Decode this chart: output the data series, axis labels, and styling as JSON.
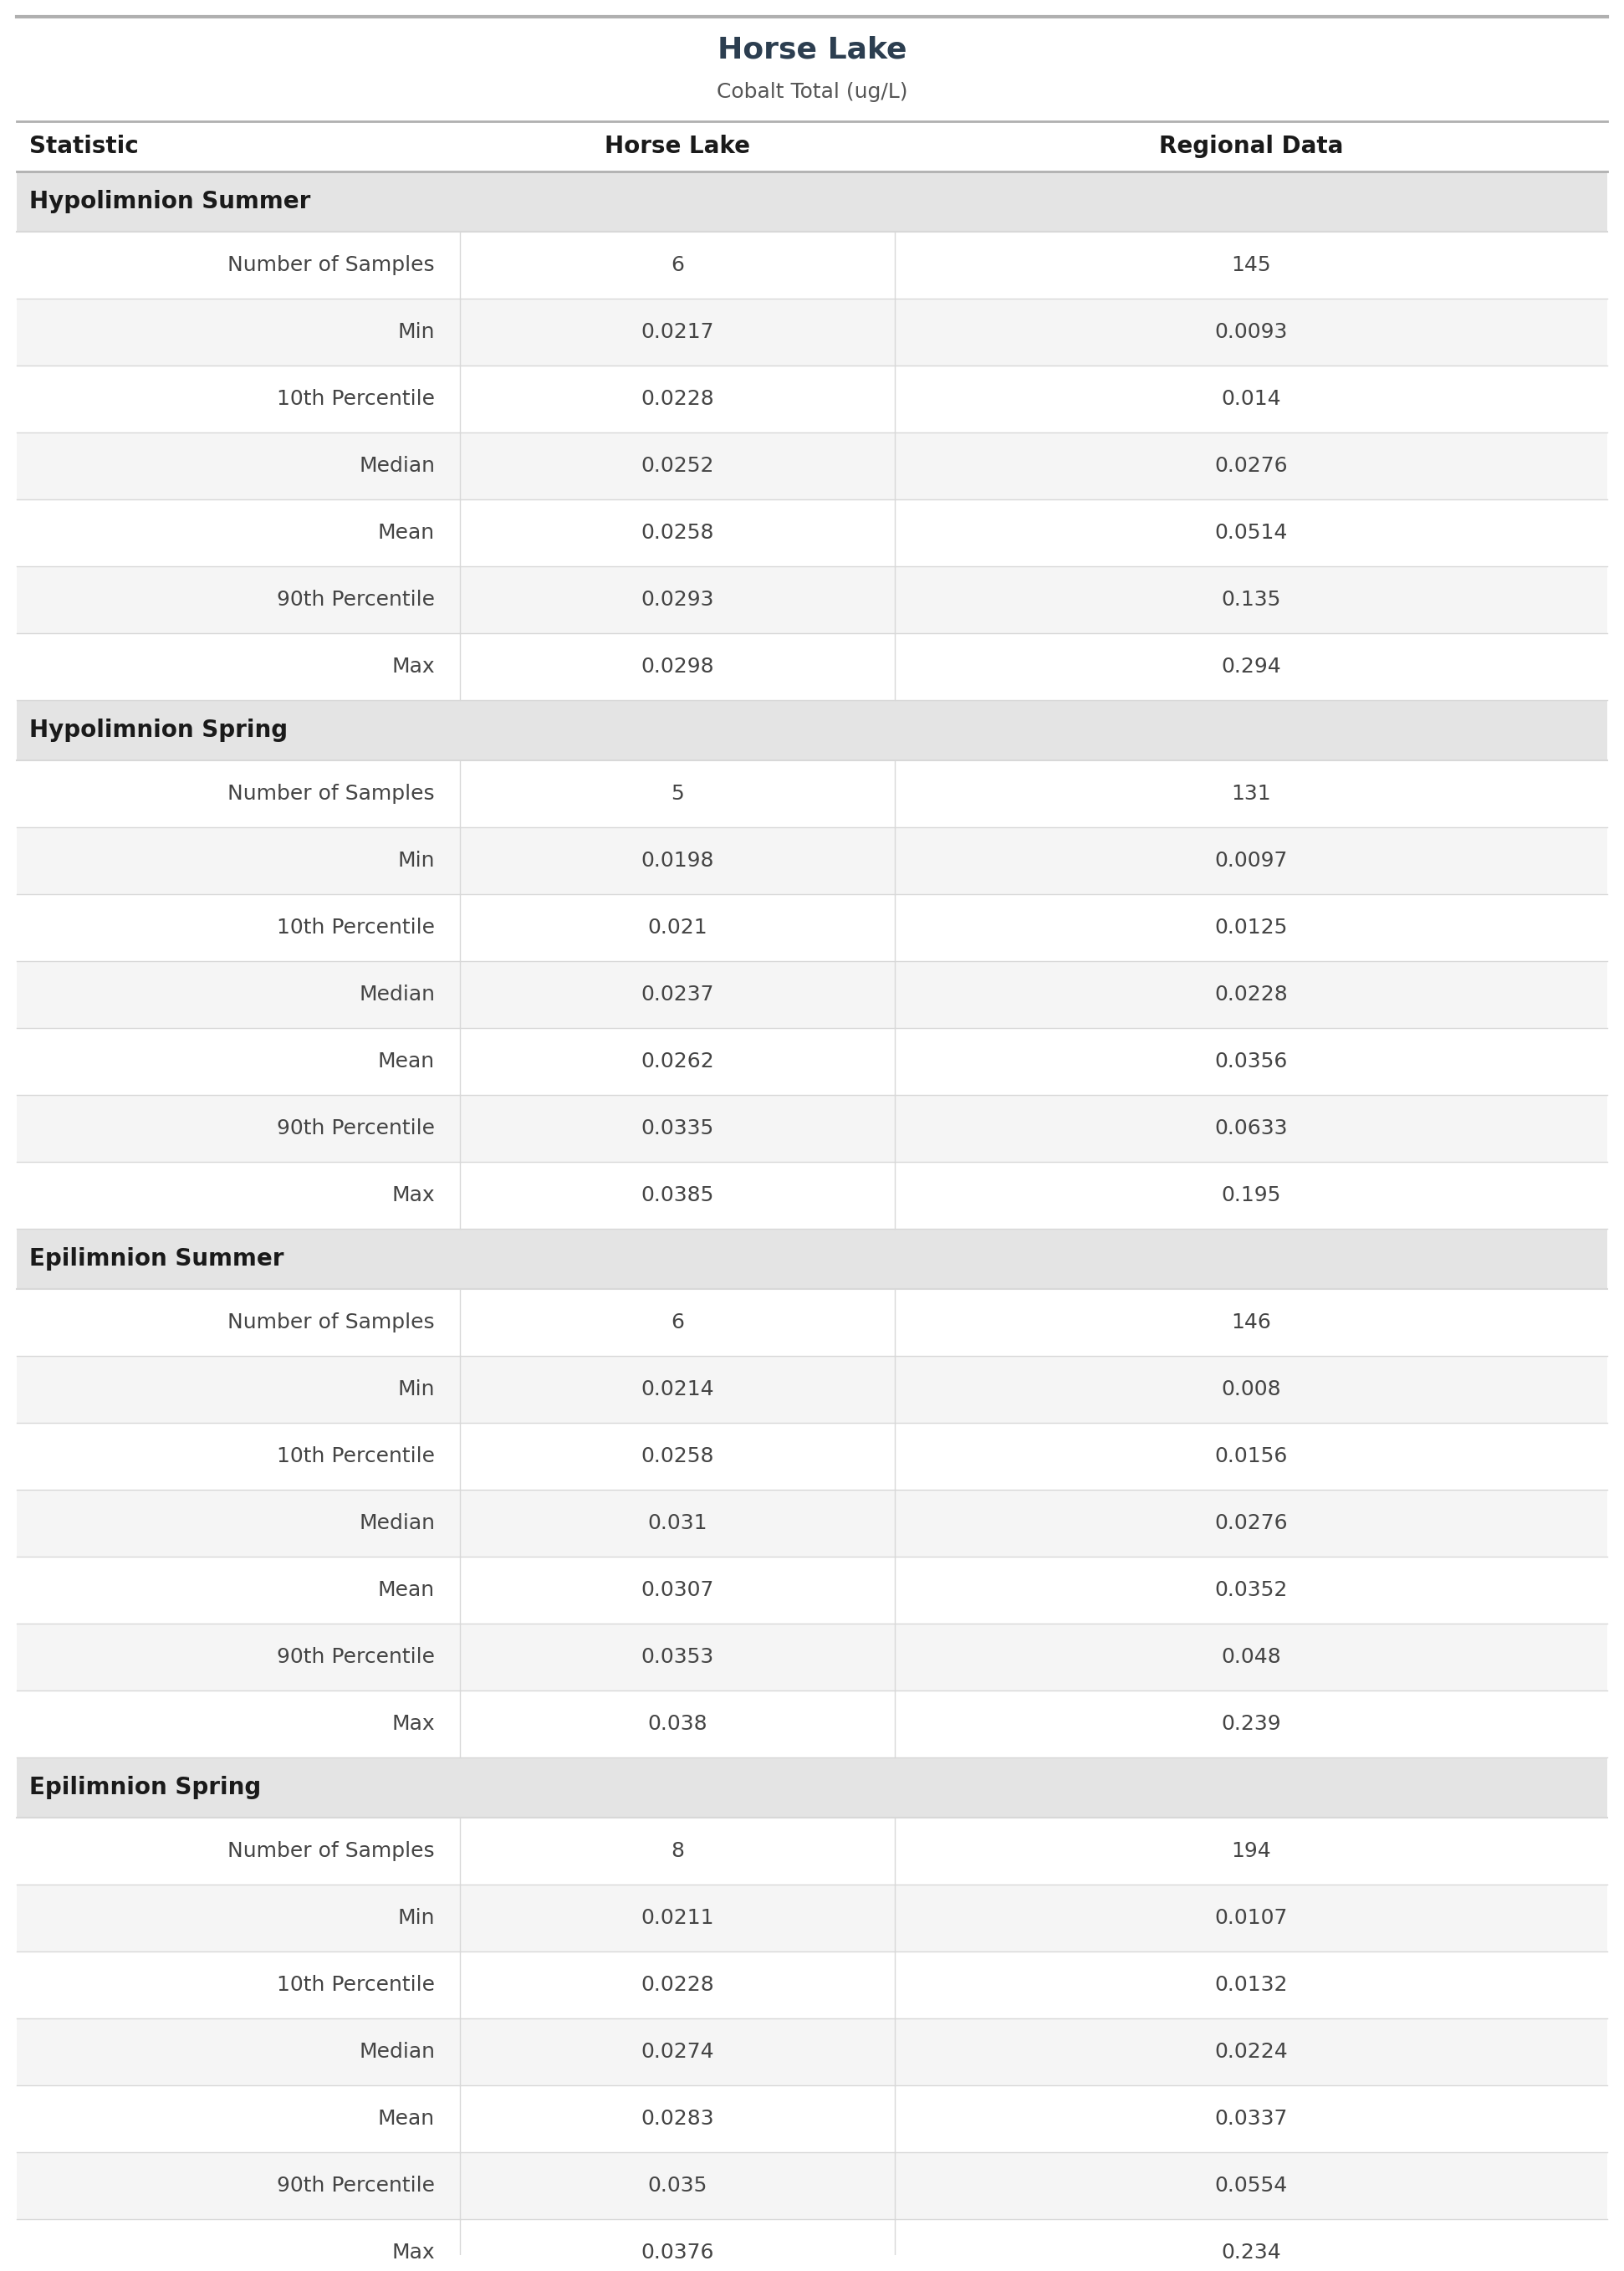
{
  "title": "Horse Lake",
  "subtitle": "Cobalt Total (ug/L)",
  "col_headers": [
    "Statistic",
    "Horse Lake",
    "Regional Data"
  ],
  "sections": [
    {
      "header": "Hypolimnion Summer",
      "rows": [
        [
          "Number of Samples",
          "6",
          "145"
        ],
        [
          "Min",
          "0.0217",
          "0.0093"
        ],
        [
          "10th Percentile",
          "0.0228",
          "0.014"
        ],
        [
          "Median",
          "0.0252",
          "0.0276"
        ],
        [
          "Mean",
          "0.0258",
          "0.0514"
        ],
        [
          "90th Percentile",
          "0.0293",
          "0.135"
        ],
        [
          "Max",
          "0.0298",
          "0.294"
        ]
      ]
    },
    {
      "header": "Hypolimnion Spring",
      "rows": [
        [
          "Number of Samples",
          "5",
          "131"
        ],
        [
          "Min",
          "0.0198",
          "0.0097"
        ],
        [
          "10th Percentile",
          "0.021",
          "0.0125"
        ],
        [
          "Median",
          "0.0237",
          "0.0228"
        ],
        [
          "Mean",
          "0.0262",
          "0.0356"
        ],
        [
          "90th Percentile",
          "0.0335",
          "0.0633"
        ],
        [
          "Max",
          "0.0385",
          "0.195"
        ]
      ]
    },
    {
      "header": "Epilimnion Summer",
      "rows": [
        [
          "Number of Samples",
          "6",
          "146"
        ],
        [
          "Min",
          "0.0214",
          "0.008"
        ],
        [
          "10th Percentile",
          "0.0258",
          "0.0156"
        ],
        [
          "Median",
          "0.031",
          "0.0276"
        ],
        [
          "Mean",
          "0.0307",
          "0.0352"
        ],
        [
          "90th Percentile",
          "0.0353",
          "0.048"
        ],
        [
          "Max",
          "0.038",
          "0.239"
        ]
      ]
    },
    {
      "header": "Epilimnion Spring",
      "rows": [
        [
          "Number of Samples",
          "8",
          "194"
        ],
        [
          "Min",
          "0.0211",
          "0.0107"
        ],
        [
          "10th Percentile",
          "0.0228",
          "0.0132"
        ],
        [
          "Median",
          "0.0274",
          "0.0224"
        ],
        [
          "Mean",
          "0.0283",
          "0.0337"
        ],
        [
          "90th Percentile",
          "0.035",
          "0.0554"
        ],
        [
          "Max",
          "0.0376",
          "0.234"
        ]
      ]
    }
  ],
  "title_color": "#2C3E50",
  "subtitle_color": "#555555",
  "header_bg_color": "#E4E4E4",
  "header_text_color": "#1A1A1A",
  "col_header_text_color": "#1A1A1A",
  "data_text_color": "#444444",
  "regional_num_color": "#444444",
  "horse_lake_num_color": "#444444",
  "row_bg_even": "#FFFFFF",
  "row_bg_odd": "#F5F5F5",
  "border_color_light": "#D8D8D8",
  "border_color_dark": "#B0B0B0",
  "title_fontsize": 26,
  "subtitle_fontsize": 18,
  "col_header_fontsize": 20,
  "section_header_fontsize": 20,
  "data_fontsize": 18
}
